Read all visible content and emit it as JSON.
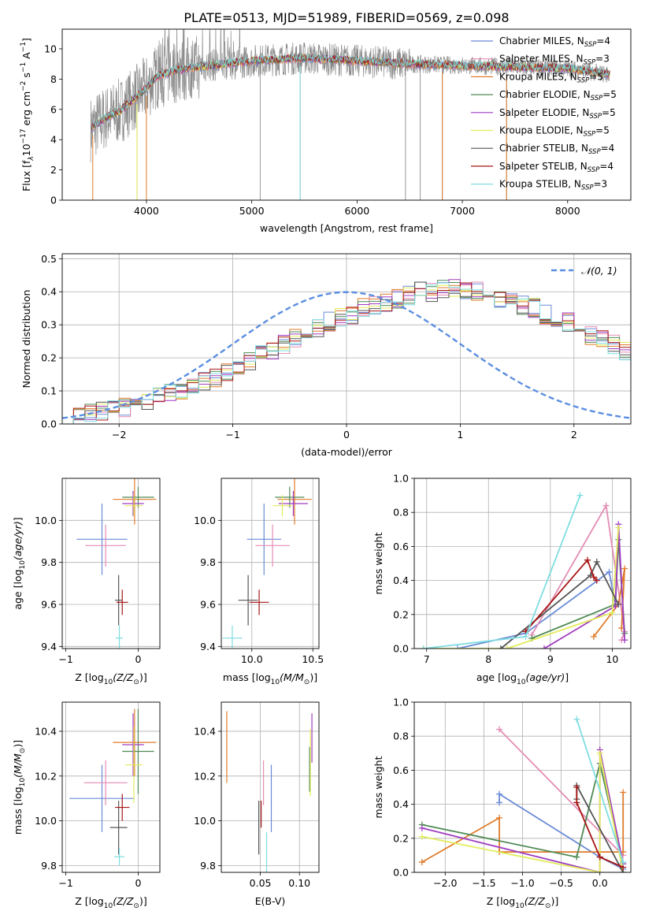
{
  "title": "PLATE=0513, MJD=51989, FIBERID=0569, z=0.098",
  "colors": {
    "chabrier_miles": "#6a8bd8",
    "salpeter_miles": "#e48cb4",
    "kroupa_miles": "#e07b2a",
    "chabrier_elodie": "#4f8a55",
    "salpeter_elodie": "#a03cc0",
    "kroupa_elodie": "#e2ec5a",
    "chabrier_stelib": "#555555",
    "salpeter_stelib": "#a81515",
    "kroupa_stelib": "#7fdde0",
    "data_grey": "#8c8c8c",
    "normal_curve": "#5b8ee0",
    "grid": "#b0b0b0"
  },
  "chart_data": [
    {
      "id": "spectrum",
      "type": "line",
      "title": "PLATE=0513, MJD=51989, FIBERID=0569, z=0.098",
      "xlabel": "wavelength [Angstrom, rest frame]",
      "ylabel": "Flux [f",
      "xlim": [
        3200,
        8600
      ],
      "ylim": [
        0,
        11.3
      ],
      "xticks": [
        "4000",
        "5000",
        "6000",
        "7000",
        "8000"
      ],
      "xtick_values": [
        4000,
        5000,
        6000,
        7000,
        8000
      ],
      "yticks": [
        "0",
        "2",
        "4",
        "6",
        "8",
        "10"
      ],
      "ytick_values": [
        0,
        2,
        4,
        6,
        8,
        10
      ],
      "legend_position": "top-right",
      "legend": [
        {
          "label": "Chabrier MILES, N",
          "n": "=4",
          "key": "chabrier_miles"
        },
        {
          "label": "Salpeter MILES, N",
          "n": "=3",
          "key": "salpeter_miles"
        },
        {
          "label": "Kroupa MILES, N",
          "n": "=5",
          "key": "kroupa_miles"
        },
        {
          "label": "Chabrier ELODIE, N",
          "n": "=5",
          "key": "chabrier_elodie"
        },
        {
          "label": "Salpeter ELODIE, N",
          "n": "=5",
          "key": "salpeter_elodie"
        },
        {
          "label": "Kroupa ELODIE, N",
          "n": "=5",
          "key": "kroupa_elodie"
        },
        {
          "label": "Chabrier STELIB, N",
          "n": "=4",
          "key": "chabrier_stelib"
        },
        {
          "label": "Salpeter STELIB, N",
          "n": "=4",
          "key": "salpeter_stelib"
        },
        {
          "label": "Kroupa STELIB, N",
          "n": "=3",
          "key": "kroupa_stelib"
        }
      ],
      "continuum": [
        [
          3470,
          4.7
        ],
        [
          3600,
          5.4
        ],
        [
          3750,
          5.9
        ],
        [
          3900,
          6.8
        ],
        [
          4000,
          7.4
        ],
        [
          4100,
          8.2
        ],
        [
          4300,
          8.6
        ],
        [
          4600,
          8.9
        ],
        [
          5000,
          9.2
        ],
        [
          5500,
          9.4
        ],
        [
          6000,
          9.2
        ],
        [
          6500,
          9.0
        ],
        [
          7000,
          8.9
        ],
        [
          7500,
          8.8
        ],
        [
          8000,
          8.7
        ],
        [
          8400,
          8.3
        ]
      ],
      "data_spikes": [
        [
          3910,
          0
        ],
        [
          5080,
          0
        ],
        [
          5460,
          0
        ],
        [
          6460,
          0
        ],
        [
          6600,
          0
        ],
        [
          6810,
          0
        ],
        [
          7420,
          0
        ]
      ]
    },
    {
      "id": "residuals",
      "type": "histogram",
      "xlabel": "(data-model)/error",
      "ylabel": "Normed distribution",
      "xlim": [
        -2.5,
        2.5
      ],
      "ylim": [
        0,
        0.515
      ],
      "xticks": [
        "−2",
        "−1",
        "0",
        "1",
        "2"
      ],
      "xtick_values": [
        -2,
        -1,
        0,
        1,
        2
      ],
      "yticks": [
        "0.0",
        "0.1",
        "0.2",
        "0.3",
        "0.4",
        "0.5"
      ],
      "ytick_values": [
        0,
        0.1,
        0.2,
        0.3,
        0.4,
        0.5
      ],
      "legend": "𝒩(0, 1)",
      "bin_width": 0.1,
      "bin_start": -2.5,
      "base_values": [
        0.02,
        0.025,
        0.03,
        0.04,
        0.045,
        0.05,
        0.06,
        0.07,
        0.08,
        0.09,
        0.1,
        0.11,
        0.13,
        0.14,
        0.16,
        0.18,
        0.19,
        0.21,
        0.22,
        0.24,
        0.26,
        0.28,
        0.29,
        0.31,
        0.32,
        0.33,
        0.35,
        0.36,
        0.37,
        0.38,
        0.39,
        0.4,
        0.4,
        0.41,
        0.41,
        0.4,
        0.4,
        0.39,
        0.38,
        0.37,
        0.36,
        0.35,
        0.33,
        0.32,
        0.31,
        0.29,
        0.27,
        0.26,
        0.24,
        0.22,
        0.2,
        0.19,
        0.17,
        0.15,
        0.14,
        0.12,
        0.11,
        0.1,
        0.09,
        0.08,
        0.07,
        0.06,
        0.05,
        0.045,
        0.04,
        0.035,
        0.03,
        0.025,
        0.02,
        0.02
      ]
    },
    {
      "id": "age_vs_Z",
      "type": "errorbar",
      "xlabel": "Z [log",
      "ylabel": "age  [log",
      "xlim": [
        -1.05,
        0.3
      ],
      "ylim": [
        9.39,
        10.2
      ],
      "xticks": [
        "−1",
        "0"
      ],
      "xtick_values": [
        -1,
        0
      ],
      "yticks": [
        "9.4",
        "9.6",
        "9.8",
        "10.0"
      ],
      "ytick_values": [
        9.4,
        9.6,
        9.8,
        10.0
      ],
      "points": [
        {
          "key": "chabrier_miles",
          "x": -0.5,
          "y": 9.91,
          "xe": 0.35,
          "ye": 0.17
        },
        {
          "key": "salpeter_miles",
          "x": -0.45,
          "y": 9.88,
          "xe": 0.28,
          "ye": 0.1
        },
        {
          "key": "kroupa_miles",
          "x": -0.05,
          "y": 10.1,
          "xe": 0.3,
          "ye": 0.12
        },
        {
          "key": "chabrier_elodie",
          "x": 0.0,
          "y": 10.11,
          "xe": 0.22,
          "ye": 0.05
        },
        {
          "key": "salpeter_elodie",
          "x": -0.07,
          "y": 10.08,
          "xe": 0.15,
          "ye": 0.06
        },
        {
          "key": "kroupa_elodie",
          "x": -0.06,
          "y": 10.07,
          "xe": 0.12,
          "ye": 0.05
        },
        {
          "key": "chabrier_stelib",
          "x": -0.27,
          "y": 9.62,
          "xe": 0.05,
          "ye": 0.12
        },
        {
          "key": "salpeter_stelib",
          "x": -0.22,
          "y": 9.61,
          "xe": 0.08,
          "ye": 0.06
        },
        {
          "key": "kroupa_stelib",
          "x": -0.26,
          "y": 9.44,
          "xe": 0.05,
          "ye": 0.06
        }
      ]
    },
    {
      "id": "age_vs_mass",
      "type": "errorbar",
      "xlabel": "mass [log",
      "ylabel": "",
      "xlim": [
        9.75,
        10.55
      ],
      "ylim": [
        9.39,
        10.2
      ],
      "xticks": [
        "10.0",
        "10.5"
      ],
      "xtick_values": [
        10.0,
        10.5
      ],
      "yticks": [
        "9.4",
        "9.6",
        "9.8",
        "10.0"
      ],
      "ytick_values": [
        9.4,
        9.6,
        9.8,
        10.0
      ],
      "points": [
        {
          "key": "chabrier_miles",
          "x": 10.1,
          "y": 9.91,
          "xe": 0.14,
          "ye": 0.17
        },
        {
          "key": "salpeter_miles",
          "x": 10.17,
          "y": 9.88,
          "xe": 0.14,
          "ye": 0.1
        },
        {
          "key": "kroupa_miles",
          "x": 10.35,
          "y": 10.1,
          "xe": 0.14,
          "ye": 0.12
        },
        {
          "key": "chabrier_elodie",
          "x": 10.31,
          "y": 10.11,
          "xe": 0.12,
          "ye": 0.05
        },
        {
          "key": "salpeter_elodie",
          "x": 10.34,
          "y": 10.08,
          "xe": 0.12,
          "ye": 0.06
        },
        {
          "key": "kroupa_elodie",
          "x": 10.25,
          "y": 10.07,
          "xe": 0.08,
          "ye": 0.05
        },
        {
          "key": "chabrier_stelib",
          "x": 9.97,
          "y": 9.62,
          "xe": 0.08,
          "ye": 0.12
        },
        {
          "key": "salpeter_stelib",
          "x": 10.06,
          "y": 9.61,
          "xe": 0.08,
          "ye": 0.06
        },
        {
          "key": "kroupa_stelib",
          "x": 9.84,
          "y": 9.44,
          "xe": 0.08,
          "ye": 0.06
        }
      ]
    },
    {
      "id": "weight_vs_age",
      "type": "line",
      "xlabel": "age  [log",
      "ylabel": "mass weight",
      "xlim": [
        6.8,
        10.3
      ],
      "ylim": [
        0,
        1.0
      ],
      "xticks": [
        "7",
        "8",
        "9",
        "10"
      ],
      "xtick_values": [
        7,
        8,
        9,
        10
      ],
      "yticks": [
        "0.0",
        "0.2",
        "0.4",
        "0.6",
        "0.8",
        "1.0"
      ],
      "ytick_values": [
        0,
        0.2,
        0.4,
        0.6,
        0.8,
        1.0
      ],
      "series": [
        {
          "key": "chabrier_miles",
          "x": [
            7.5,
            8.6,
            9.95,
            10.05
          ],
          "y": [
            0.0,
            0.09,
            0.45,
            0.26
          ]
        },
        {
          "key": "salpeter_miles",
          "x": [
            8.7,
            9.9,
            10.2,
            10.15
          ],
          "y": [
            0.08,
            0.84,
            0.1,
            0.05
          ]
        },
        {
          "key": "kroupa_miles",
          "x": [
            9.7,
            10.1,
            10.2,
            10.15
          ],
          "y": [
            0.07,
            0.26,
            0.47,
            0.12
          ]
        },
        {
          "key": "chabrier_elodie",
          "x": [
            8.7,
            10.05,
            10.1,
            10.2
          ],
          "y": [
            0.06,
            0.26,
            0.64,
            0.09
          ]
        },
        {
          "key": "salpeter_elodie",
          "x": [
            8.9,
            10.05,
            10.1,
            10.2
          ],
          "y": [
            0.0,
            0.25,
            0.73,
            0.05
          ]
        },
        {
          "key": "kroupa_elodie",
          "x": [
            6.95,
            8.3,
            10.0,
            10.1
          ],
          "y": [
            0.0,
            0.0,
            0.21,
            0.71
          ]
        },
        {
          "key": "chabrier_stelib",
          "x": [
            8.2,
            9.65,
            9.75,
            10.1
          ],
          "y": [
            0.0,
            0.43,
            0.51,
            0.26
          ]
        },
        {
          "key": "salpeter_stelib",
          "x": [
            8.6,
            9.6,
            9.7,
            9.75
          ],
          "y": [
            0.1,
            0.52,
            0.42,
            0.4
          ]
        },
        {
          "key": "kroupa_stelib",
          "x": [
            6.95,
            8.6,
            9.48
          ],
          "y": [
            0.0,
            0.07,
            0.9
          ]
        }
      ]
    },
    {
      "id": "mass_vs_Z",
      "type": "errorbar",
      "xlabel": "Z [log",
      "ylabel": "mass [log",
      "xlim": [
        -1.05,
        0.3
      ],
      "ylim": [
        9.77,
        10.53
      ],
      "xticks": [
        "−1",
        "0"
      ],
      "xtick_values": [
        -1,
        0
      ],
      "yticks": [
        "9.8",
        "10.0",
        "10.2",
        "10.4"
      ],
      "ytick_values": [
        9.8,
        10.0,
        10.2,
        10.4
      ],
      "points": [
        {
          "key": "chabrier_miles",
          "x": -0.5,
          "y": 10.1,
          "xe": 0.45,
          "ye": 0.15
        },
        {
          "key": "salpeter_miles",
          "x": -0.45,
          "y": 10.17,
          "xe": 0.3,
          "ye": 0.1
        },
        {
          "key": "kroupa_miles",
          "x": -0.05,
          "y": 10.35,
          "xe": 0.3,
          "ye": 0.15
        },
        {
          "key": "chabrier_elodie",
          "x": 0.0,
          "y": 10.31,
          "xe": 0.22,
          "ye": 0.19
        },
        {
          "key": "salpeter_elodie",
          "x": -0.07,
          "y": 10.34,
          "xe": 0.15,
          "ye": 0.14
        },
        {
          "key": "kroupa_elodie",
          "x": -0.06,
          "y": 10.25,
          "xe": 0.12,
          "ye": 0.17
        },
        {
          "key": "chabrier_stelib",
          "x": -0.27,
          "y": 9.97,
          "xe": 0.12,
          "ye": 0.12
        },
        {
          "key": "salpeter_stelib",
          "x": -0.22,
          "y": 10.06,
          "xe": 0.1,
          "ye": 0.06
        },
        {
          "key": "kroupa_stelib",
          "x": -0.26,
          "y": 9.84,
          "xe": 0.07,
          "ye": 0.04
        }
      ]
    },
    {
      "id": "mass_vs_ebv",
      "type": "errorbar",
      "xlabel": "E(B-V)",
      "ylabel": "",
      "xlim": [
        0.0,
        0.125
      ],
      "ylim": [
        9.77,
        10.53
      ],
      "xticks": [
        "0.05",
        "0.10"
      ],
      "xtick_values": [
        0.05,
        0.1
      ],
      "yticks": [
        "9.8",
        "10.0",
        "10.2",
        "10.4"
      ],
      "ytick_values": [
        9.8,
        10.0,
        10.2,
        10.4
      ],
      "points": [
        {
          "key": "chabrier_miles",
          "x": 0.064,
          "y": 10.1,
          "xe": 0,
          "ye": 0.15
        },
        {
          "key": "salpeter_miles",
          "x": 0.054,
          "y": 10.17,
          "xe": 0,
          "ye": 0.1
        },
        {
          "key": "kroupa_miles",
          "x": 0.007,
          "y": 10.33,
          "xe": 0,
          "ye": 0.16
        },
        {
          "key": "chabrier_elodie",
          "x": 0.113,
          "y": 10.23,
          "xe": 0,
          "ye": 0.1
        },
        {
          "key": "salpeter_elodie",
          "x": 0.116,
          "y": 10.37,
          "xe": 0,
          "ye": 0.11
        },
        {
          "key": "kroupa_elodie",
          "x": 0.114,
          "y": 10.26,
          "xe": 0,
          "ye": 0.15
        },
        {
          "key": "chabrier_stelib",
          "x": 0.048,
          "y": 9.97,
          "xe": 0,
          "ye": 0.12
        },
        {
          "key": "salpeter_stelib",
          "x": 0.051,
          "y": 10.03,
          "xe": 0,
          "ye": 0.06
        },
        {
          "key": "kroupa_stelib",
          "x": 0.058,
          "y": 9.85,
          "xe": 0,
          "ye": 0.1
        }
      ]
    },
    {
      "id": "weight_vs_Z",
      "type": "line",
      "xlabel": "Z [log",
      "ylabel": "mass weight",
      "xlim": [
        -2.4,
        0.4
      ],
      "ylim": [
        0,
        1.0
      ],
      "xticks": [
        "−2.0",
        "−1.5",
        "−1.0",
        "−0.5",
        "0.0"
      ],
      "xtick_values": [
        -2.0,
        -1.5,
        -1.0,
        -0.5,
        0.0
      ],
      "yticks": [
        "0.0",
        "0.2",
        "0.4",
        "0.6",
        "0.8",
        "1.0"
      ],
      "ytick_values": [
        0,
        0.2,
        0.4,
        0.6,
        0.8,
        1.0
      ],
      "series": [
        {
          "key": "chabrier_miles",
          "x": [
            -1.3,
            -1.3,
            0.0,
            0.3
          ],
          "y": [
            0.41,
            0.46,
            0.09,
            0.02
          ]
        },
        {
          "key": "salpeter_miles",
          "x": [
            -1.3,
            0.3
          ],
          "y": [
            0.84,
            0.1
          ]
        },
        {
          "key": "kroupa_miles",
          "x": [
            -2.3,
            -1.3,
            -1.3,
            0.3,
            0.3
          ],
          "y": [
            0.06,
            0.32,
            0.12,
            0.12,
            0.47
          ]
        },
        {
          "key": "chabrier_elodie",
          "x": [
            -2.3,
            -0.3,
            0.0,
            0.3
          ],
          "y": [
            0.28,
            0.09,
            0.64,
            0.05
          ]
        },
        {
          "key": "salpeter_elodie",
          "x": [
            -2.3,
            0.0,
            0.0,
            0.3
          ],
          "y": [
            0.26,
            0.0,
            0.72,
            0.05
          ]
        },
        {
          "key": "kroupa_elodie",
          "x": [
            -2.3,
            0.0,
            0.0,
            0.3
          ],
          "y": [
            0.21,
            0.0,
            0.7,
            0.0
          ]
        },
        {
          "key": "chabrier_stelib",
          "x": [
            -0.3,
            -0.3,
            0.3
          ],
          "y": [
            0.43,
            0.51,
            0.0
          ]
        },
        {
          "key": "salpeter_stelib",
          "x": [
            -0.3,
            -0.3,
            0.0,
            0.3
          ],
          "y": [
            0.5,
            0.41,
            0.09,
            0.03
          ]
        },
        {
          "key": "kroupa_stelib",
          "x": [
            -0.3,
            0.3
          ],
          "y": [
            0.9,
            0.06
          ]
        }
      ]
    }
  ]
}
